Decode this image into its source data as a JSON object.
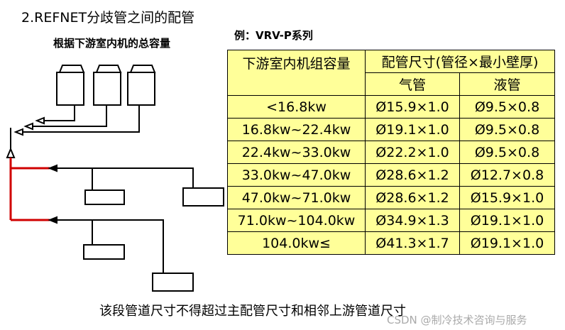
{
  "title": "2.REFNET分歧管之间的配管",
  "subtitle": "根据下游室内机的总容量",
  "example": "例：VRV-P系列",
  "table": {
    "header": [
      "下游室内机组容量",
      "配管尺寸(管径×最小壁厚)"
    ],
    "subheader": [
      "气管",
      "液管"
    ],
    "rows": [
      [
        "<16.8kw",
        "Ø15.9×1.0",
        "Ø9.5×0.8"
      ],
      [
        "16.8kw~22.4kw",
        "Ø19.1×1.0",
        "Ø9.5×0.8"
      ],
      [
        "22.4kw~33.0kw",
        "Ø22.2×1.0",
        "Ø9.5×0.8"
      ],
      [
        "33.0kw~47.0kw",
        "Ø28.6×1.2",
        "Ø12.7×0.8"
      ],
      [
        "47.0kw~71.0kw",
        "Ø28.6×1.2",
        "Ø15.9×1.0"
      ],
      [
        "71.0kw~104.0kw",
        "Ø34.9×1.3",
        "Ø19.1×1.0"
      ],
      [
        "104.0kw≤",
        "Ø41.3×1.7",
        "Ø19.1×1.0"
      ]
    ]
  },
  "footer": "该段管道尺寸不得超过主配管尺寸和相邻上游管道尺寸",
  "watermark": "CSDN @制冷技术咨询与服务"
}
